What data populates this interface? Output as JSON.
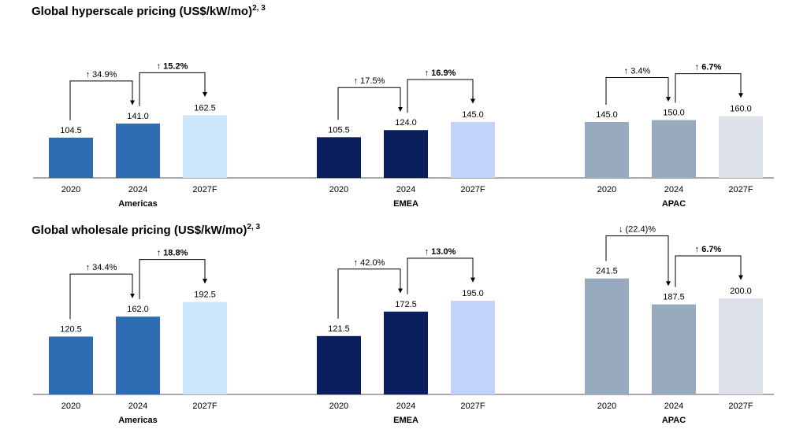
{
  "chart_data": [
    {
      "type": "bar",
      "title": "Global hyperscale pricing (US$/kW/mo)",
      "title_sup": "2, 3",
      "groups": [
        {
          "name": "Americas",
          "categories": [
            "2020",
            "2024",
            "2027F"
          ],
          "values": [
            104.5,
            141.0,
            162.5
          ],
          "value_labels": [
            "104.5",
            "141.0",
            "162.5"
          ],
          "colors": [
            "#2e6db4",
            "#2e6db4",
            "#cce6fb"
          ],
          "changes": [
            {
              "from": 0,
              "to": 1,
              "arrow": "↑",
              "text": "34.9%",
              "bold": false
            },
            {
              "from": 1,
              "to": 2,
              "arrow": "↑",
              "text": "15.2%",
              "bold": true
            }
          ]
        },
        {
          "name": "EMEA",
          "categories": [
            "2020",
            "2024",
            "2027F"
          ],
          "values": [
            105.5,
            124.0,
            145.0
          ],
          "value_labels": [
            "105.5",
            "124.0",
            "145.0"
          ],
          "colors": [
            "#0b1f5c",
            "#0b1f5c",
            "#c2d3fa"
          ],
          "changes": [
            {
              "from": 0,
              "to": 1,
              "arrow": "↑",
              "text": "17.5%",
              "bold": false
            },
            {
              "from": 1,
              "to": 2,
              "arrow": "↑",
              "text": "16.9%",
              "bold": true
            }
          ]
        },
        {
          "name": "APAC",
          "categories": [
            "2020",
            "2024",
            "2027F"
          ],
          "values": [
            145.0,
            150.0,
            160.0
          ],
          "value_labels": [
            "145.0",
            "150.0",
            "160.0"
          ],
          "colors": [
            "#98abbe",
            "#98abbe",
            "#dde2ea"
          ],
          "changes": [
            {
              "from": 0,
              "to": 1,
              "arrow": "↑",
              "text": "3.4%",
              "bold": false
            },
            {
              "from": 1,
              "to": 2,
              "arrow": "↑",
              "text": "6.7%",
              "bold": true
            }
          ]
        }
      ]
    },
    {
      "type": "bar",
      "title": "Global wholesale pricing (US$/kW/mo)",
      "title_sup": "2, 3",
      "groups": [
        {
          "name": "Americas",
          "categories": [
            "2020",
            "2024",
            "2027F"
          ],
          "values": [
            120.5,
            162.0,
            192.5
          ],
          "value_labels": [
            "120.5",
            "162.0",
            "192.5"
          ],
          "colors": [
            "#2e6db4",
            "#2e6db4",
            "#cce6fb"
          ],
          "changes": [
            {
              "from": 0,
              "to": 1,
              "arrow": "↑",
              "text": "34.4%",
              "bold": false
            },
            {
              "from": 1,
              "to": 2,
              "arrow": "↑",
              "text": "18.8%",
              "bold": true
            }
          ]
        },
        {
          "name": "EMEA",
          "categories": [
            "2020",
            "2024",
            "2027F"
          ],
          "values": [
            121.5,
            172.5,
            195.0
          ],
          "value_labels": [
            "121.5",
            "172.5",
            "195.0"
          ],
          "colors": [
            "#0b1f5c",
            "#0b1f5c",
            "#c2d3fa"
          ],
          "changes": [
            {
              "from": 0,
              "to": 1,
              "arrow": "↑",
              "text": "42.0%",
              "bold": false
            },
            {
              "from": 1,
              "to": 2,
              "arrow": "↑",
              "text": "13.0%",
              "bold": true
            }
          ]
        },
        {
          "name": "APAC",
          "categories": [
            "2020",
            "2024",
            "2027F"
          ],
          "values": [
            241.5,
            187.5,
            200.0
          ],
          "value_labels": [
            "241.5",
            "187.5",
            "200.0"
          ],
          "colors": [
            "#98abbe",
            "#98abbe",
            "#dde2ea"
          ],
          "changes": [
            {
              "from": 0,
              "to": 1,
              "arrow": "↓",
              "text": "(22.4)%",
              "bold": false
            },
            {
              "from": 1,
              "to": 2,
              "arrow": "↑",
              "text": "6.7%",
              "bold": true
            }
          ]
        }
      ]
    }
  ]
}
